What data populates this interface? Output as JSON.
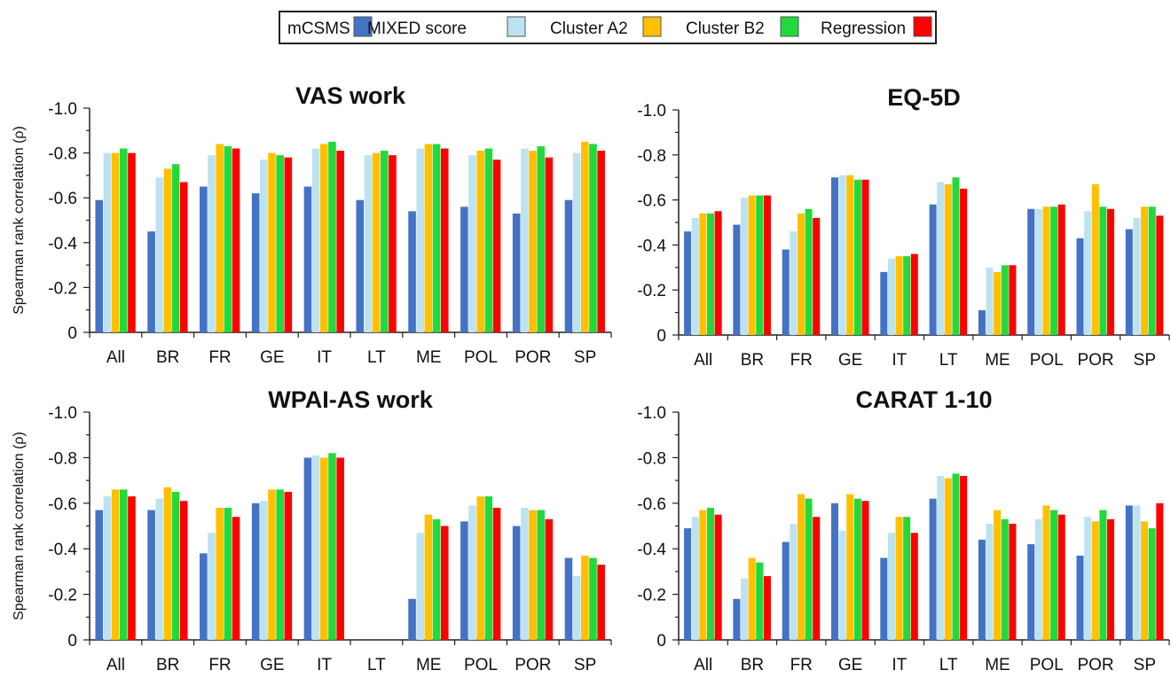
{
  "legend": {
    "items": [
      {
        "name": "mCSMS",
        "color": "#4472C4"
      },
      {
        "name": "MIXED score",
        "color": "#BDE3F0"
      },
      {
        "name": "Cluster A2",
        "color": "#FFC000"
      },
      {
        "name": "Cluster B2",
        "color": "#22D93B"
      },
      {
        "name": "Regression",
        "color": "#FF0000"
      }
    ]
  },
  "chart_data": [
    {
      "type": "bar",
      "title": "VAS work",
      "ylabel": "Spearman rank correlation (ρ)",
      "ylim": [
        0,
        -1.0
      ],
      "yticks": [
        "-1.0",
        "-0.8",
        "-0.6",
        "-0.4",
        "-0.2",
        "0"
      ],
      "categories": [
        "All",
        "BR",
        "FR",
        "GE",
        "IT",
        "LT",
        "ME",
        "POL",
        "POR",
        "SP"
      ],
      "series": [
        {
          "name": "mCSMS",
          "values": [
            -0.59,
            -0.45,
            -0.65,
            -0.62,
            -0.65,
            -0.59,
            -0.54,
            -0.56,
            -0.53,
            -0.59
          ]
        },
        {
          "name": "MIXED score",
          "values": [
            -0.8,
            -0.69,
            -0.79,
            -0.77,
            -0.82,
            -0.79,
            -0.82,
            -0.79,
            -0.82,
            -0.8
          ]
        },
        {
          "name": "Cluster A2",
          "values": [
            -0.8,
            -0.73,
            -0.84,
            -0.8,
            -0.84,
            -0.8,
            -0.84,
            -0.81,
            -0.81,
            -0.85
          ]
        },
        {
          "name": "Cluster B2",
          "values": [
            -0.82,
            -0.75,
            -0.83,
            -0.79,
            -0.85,
            -0.81,
            -0.84,
            -0.82,
            -0.83,
            -0.84
          ]
        },
        {
          "name": "Regression",
          "values": [
            -0.8,
            -0.67,
            -0.82,
            -0.78,
            -0.81,
            -0.79,
            -0.82,
            -0.77,
            -0.78,
            -0.81
          ]
        }
      ]
    },
    {
      "type": "bar",
      "title": "EQ-5D",
      "ylabel": "",
      "ylim": [
        0,
        -1.0
      ],
      "yticks": [
        "-1.0",
        "-0.8",
        "-0.6",
        "-0.4",
        "-0.2",
        "0"
      ],
      "categories": [
        "All",
        "BR",
        "FR",
        "GE",
        "IT",
        "LT",
        "ME",
        "POL",
        "POR",
        "SP"
      ],
      "series": [
        {
          "name": "mCSMS",
          "values": [
            -0.46,
            -0.49,
            -0.38,
            -0.7,
            -0.28,
            -0.58,
            -0.11,
            -0.56,
            -0.43,
            -0.47
          ]
        },
        {
          "name": "MIXED score",
          "values": [
            -0.52,
            -0.61,
            -0.46,
            -0.71,
            -0.34,
            -0.68,
            -0.3,
            -0.56,
            -0.55,
            -0.52
          ]
        },
        {
          "name": "Cluster A2",
          "values": [
            -0.54,
            -0.62,
            -0.54,
            -0.71,
            -0.35,
            -0.67,
            -0.28,
            -0.57,
            -0.67,
            -0.57
          ]
        },
        {
          "name": "Cluster B2",
          "values": [
            -0.54,
            -0.62,
            -0.56,
            -0.69,
            -0.35,
            -0.7,
            -0.31,
            -0.57,
            -0.57,
            -0.57
          ]
        },
        {
          "name": "Regression",
          "values": [
            -0.55,
            -0.62,
            -0.52,
            -0.69,
            -0.36,
            -0.65,
            -0.31,
            -0.58,
            -0.56,
            -0.53
          ]
        }
      ]
    },
    {
      "type": "bar",
      "title": "WPAI-AS work",
      "ylabel": "Spearman rank correlation (ρ)",
      "ylim": [
        0,
        -1.0
      ],
      "yticks": [
        "-1.0",
        "-0.8",
        "-0.6",
        "-0.4",
        "-0.2",
        "0"
      ],
      "categories": [
        "All",
        "BR",
        "FR",
        "GE",
        "IT",
        "LT",
        "ME",
        "POL",
        "POR",
        "SP"
      ],
      "series": [
        {
          "name": "mCSMS",
          "values": [
            -0.57,
            -0.57,
            -0.38,
            -0.6,
            -0.8,
            0,
            -0.18,
            -0.52,
            -0.5,
            -0.36
          ]
        },
        {
          "name": "MIXED score",
          "values": [
            -0.63,
            -0.62,
            -0.47,
            -0.61,
            -0.81,
            0,
            -0.47,
            -0.59,
            -0.58,
            -0.28
          ]
        },
        {
          "name": "Cluster A2",
          "values": [
            -0.66,
            -0.67,
            -0.58,
            -0.66,
            -0.8,
            0,
            -0.55,
            -0.63,
            -0.57,
            -0.37
          ]
        },
        {
          "name": "Cluster B2",
          "values": [
            -0.66,
            -0.65,
            -0.58,
            -0.66,
            -0.82,
            0,
            -0.53,
            -0.63,
            -0.57,
            -0.36
          ]
        },
        {
          "name": "Regression",
          "values": [
            -0.63,
            -0.61,
            -0.54,
            -0.65,
            -0.8,
            0,
            -0.5,
            -0.58,
            -0.53,
            -0.33
          ]
        }
      ]
    },
    {
      "type": "bar",
      "title": "CARAT 1-10",
      "ylabel": "",
      "ylim": [
        0,
        -1.0
      ],
      "yticks": [
        "-1.0",
        "-0.8",
        "-0.6",
        "-0.4",
        "-0.2",
        "0"
      ],
      "categories": [
        "All",
        "BR",
        "FR",
        "GE",
        "IT",
        "LT",
        "ME",
        "POL",
        "POR",
        "SP"
      ],
      "series": [
        {
          "name": "mCSMS",
          "values": [
            -0.49,
            -0.18,
            -0.43,
            -0.6,
            -0.36,
            -0.62,
            -0.44,
            -0.42,
            -0.37,
            -0.59
          ]
        },
        {
          "name": "MIXED score",
          "values": [
            -0.54,
            -0.27,
            -0.51,
            -0.48,
            -0.47,
            -0.72,
            -0.51,
            -0.53,
            -0.54,
            -0.59
          ]
        },
        {
          "name": "Cluster A2",
          "values": [
            -0.57,
            -0.36,
            -0.64,
            -0.64,
            -0.54,
            -0.71,
            -0.57,
            -0.59,
            -0.52,
            -0.52
          ]
        },
        {
          "name": "Cluster B2",
          "values": [
            -0.58,
            -0.34,
            -0.62,
            -0.62,
            -0.54,
            -0.73,
            -0.53,
            -0.57,
            -0.57,
            -0.49
          ]
        },
        {
          "name": "Regression",
          "values": [
            -0.55,
            -0.28,
            -0.54,
            -0.61,
            -0.47,
            -0.72,
            -0.51,
            -0.55,
            -0.53,
            -0.6
          ]
        }
      ]
    }
  ]
}
